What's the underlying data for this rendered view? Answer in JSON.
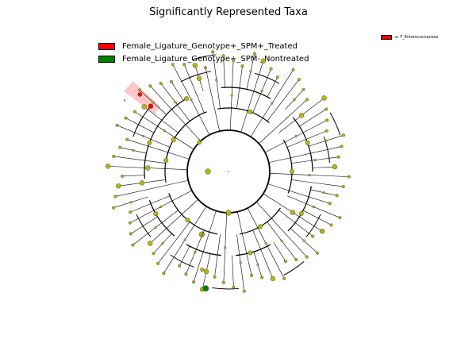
{
  "title": "Significantly Represented Taxa",
  "legend": [
    {
      "label": "Female_Ligature_Genotype+_SPM+_Treated",
      "color": "#ff0000"
    },
    {
      "label": "Female_Ligature_Genotype+_SPM-_Nontreated",
      "color": "#008000"
    }
  ],
  "clade_key": {
    "label": "a: F_Enterococcaceae",
    "color": "#ff0000"
  },
  "highlight": {
    "letter": "a",
    "color": "#ff0000"
  },
  "node_color": "#b5b50e",
  "edge_color": "#000000"
}
